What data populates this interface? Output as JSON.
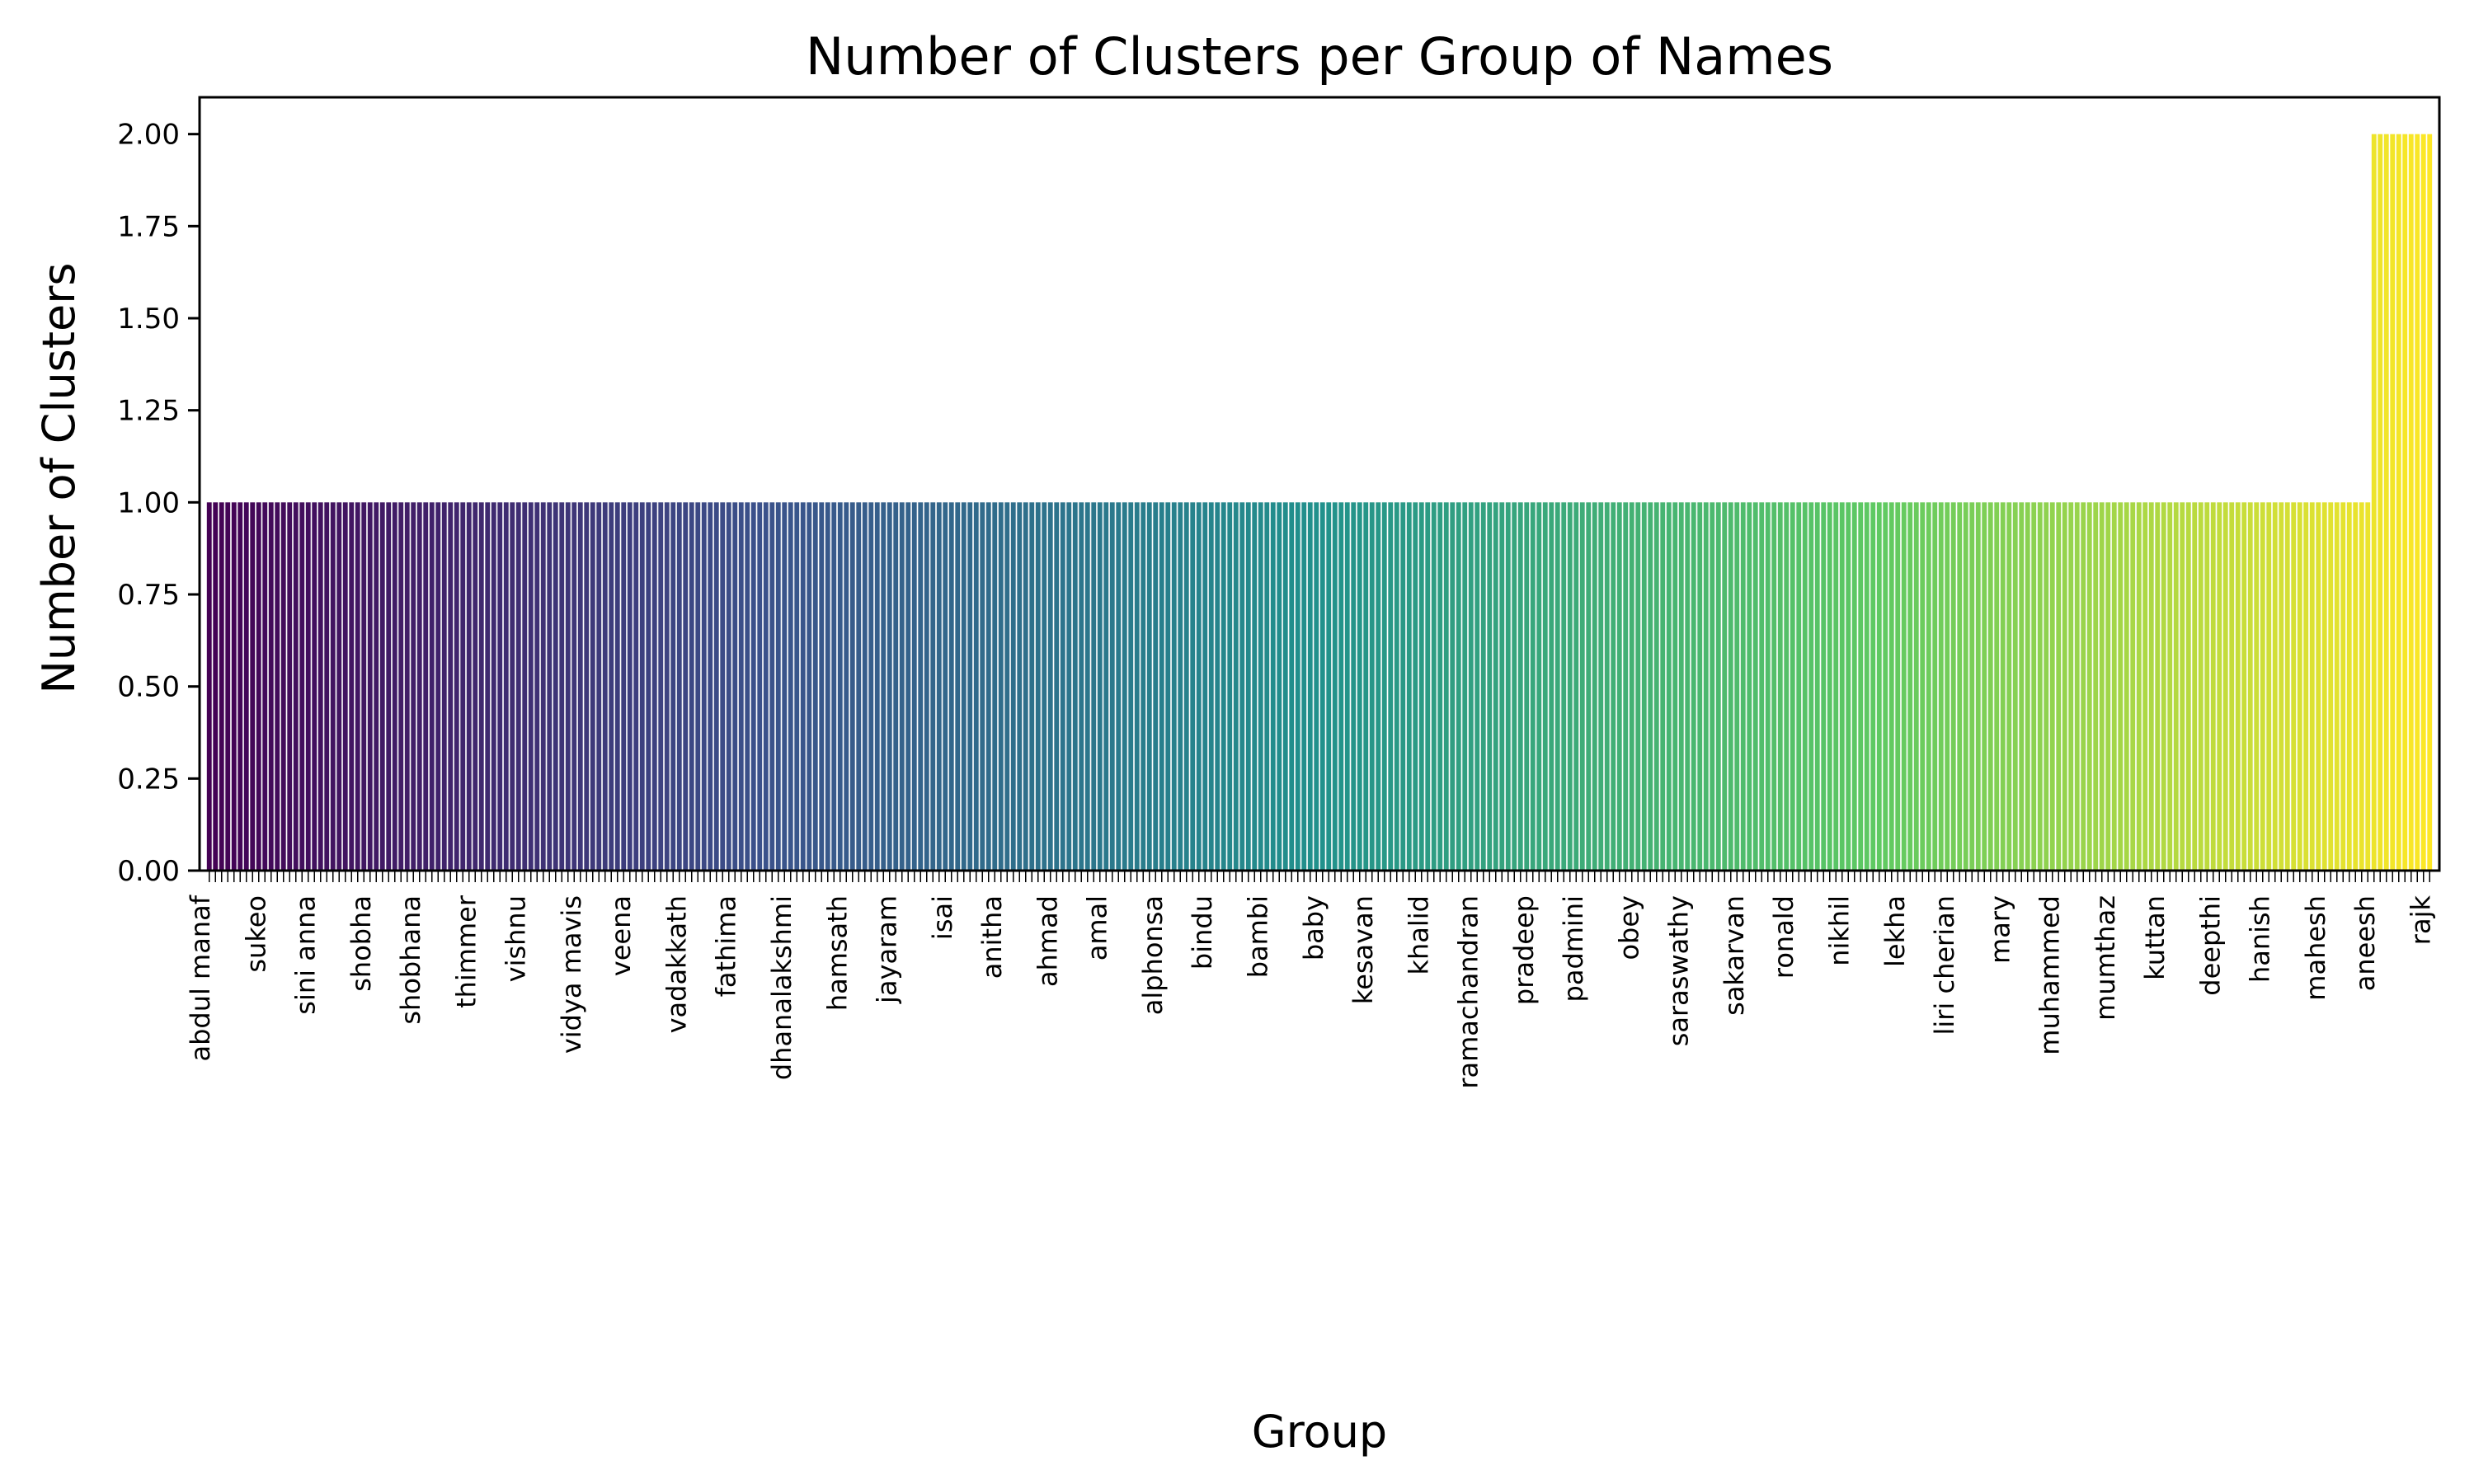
{
  "chart_data": {
    "type": "bar",
    "title": "Number of Clusters per Group of Names",
    "xlabel": "Group",
    "ylabel": "Number of Clusters",
    "ylim": [
      0,
      2.1
    ],
    "yticks": [
      "0.00",
      "0.25",
      "0.50",
      "0.75",
      "1.00",
      "1.25",
      "1.50",
      "1.75",
      "2.00"
    ],
    "grid": false,
    "legend": "none",
    "colormap": [
      "#440154",
      "#3b528b",
      "#21918c",
      "#5ec962",
      "#fde725"
    ],
    "bar_count": 360,
    "base_value": 1,
    "last_bars_value": 2,
    "last_bars_count": 10,
    "visible_categories": [
      "abdul manaf",
      "sukeo",
      "sini anna",
      "shobha",
      "shobhana",
      "thimmer",
      "vishnu",
      "vidya mavis",
      "veena",
      "vadakkath",
      "fathima",
      "dhanalakshmi",
      "hamsath",
      "jayaram",
      "isai",
      "anitha",
      "ahmad",
      "amal",
      "alphonsa",
      "bindu",
      "bambi",
      "baby",
      "kesavan",
      "khalid",
      "ramachandran",
      "pradeep",
      "padmini",
      "obey",
      "saraswathy",
      "sakarvan",
      "ronald",
      "nikhil",
      "lekha",
      "liri cherian",
      "mary",
      "muhammed",
      "mumthaz",
      "kuttan",
      "deepthi",
      "hanish",
      "mahesh",
      "aneesh",
      "rajk"
    ]
  }
}
